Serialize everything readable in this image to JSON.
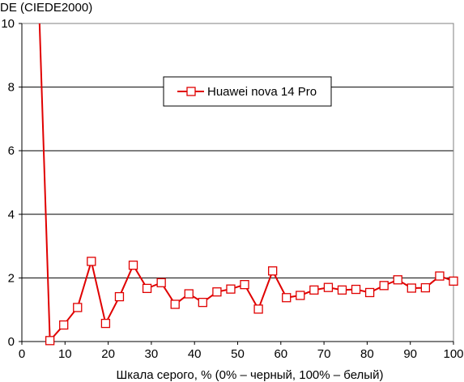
{
  "chart_data": {
    "type": "line",
    "ylabel": "DE (CIEDE2000)",
    "xlabel": "Шкала серого, % (0% – черный, 100% – белый)",
    "xlim": [
      0,
      100
    ],
    "ylim": [
      0,
      10
    ],
    "xticks": [
      0,
      10,
      20,
      30,
      40,
      50,
      60,
      70,
      80,
      90,
      100
    ],
    "yticks": [
      0,
      2,
      4,
      6,
      8,
      10
    ],
    "grid": "horizontal",
    "legend_position": "top-center",
    "series": [
      {
        "name": "Huawei nova 14 Pro",
        "color": "#e00000",
        "marker": "hollow-square",
        "off_chart_start": [
          4.1,
          10.0
        ],
        "x": [
          6.5,
          9.7,
          12.9,
          16.1,
          19.4,
          22.6,
          25.8,
          29.0,
          32.3,
          35.5,
          38.7,
          41.9,
          45.2,
          48.4,
          51.6,
          54.8,
          58.1,
          61.3,
          64.5,
          67.7,
          71.0,
          74.2,
          77.4,
          80.6,
          83.9,
          87.1,
          90.3,
          93.5,
          96.8,
          100.0
        ],
        "y": [
          0.03,
          0.52,
          1.07,
          2.52,
          0.57,
          1.41,
          2.4,
          1.67,
          1.85,
          1.17,
          1.5,
          1.23,
          1.56,
          1.65,
          1.79,
          1.02,
          2.22,
          1.38,
          1.45,
          1.62,
          1.7,
          1.62,
          1.64,
          1.54,
          1.76,
          1.94,
          1.68,
          1.69,
          2.06,
          1.9
        ]
      }
    ]
  }
}
